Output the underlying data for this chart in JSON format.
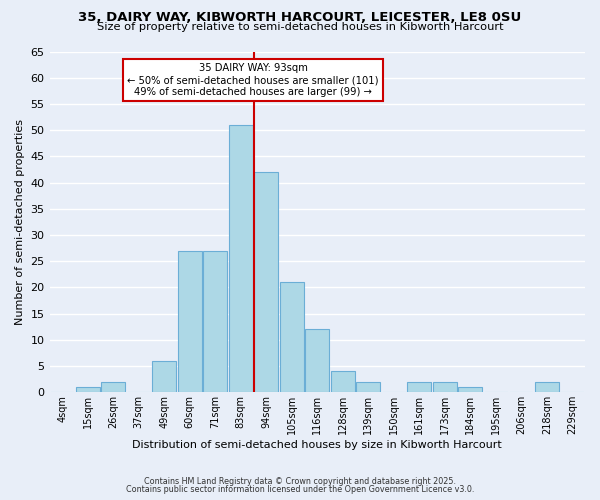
{
  "title_line1": "35, DAIRY WAY, KIBWORTH HARCOURT, LEICESTER, LE8 0SU",
  "title_line2": "Size of property relative to semi-detached houses in Kibworth Harcourt",
  "xlabel": "Distribution of semi-detached houses by size in Kibworth Harcourt",
  "ylabel": "Number of semi-detached properties",
  "bin_labels": [
    "4sqm",
    "15sqm",
    "26sqm",
    "37sqm",
    "49sqm",
    "60sqm",
    "71sqm",
    "83sqm",
    "94sqm",
    "105sqm",
    "116sqm",
    "128sqm",
    "139sqm",
    "150sqm",
    "161sqm",
    "173sqm",
    "184sqm",
    "195sqm",
    "206sqm",
    "218sqm",
    "229sqm"
  ],
  "counts": [
    0,
    1,
    2,
    0,
    6,
    27,
    27,
    51,
    42,
    21,
    12,
    4,
    2,
    0,
    2,
    2,
    1,
    0,
    0,
    2,
    0
  ],
  "bar_color": "#add8e6",
  "bar_edge_color": "#6baed6",
  "vline_bin_index": 8,
  "vline_color": "#cc0000",
  "annotation_title": "35 DAIRY WAY: 93sqm",
  "annotation_line1": "← 50% of semi-detached houses are smaller (101)",
  "annotation_line2": "49% of semi-detached houses are larger (99) →",
  "annotation_box_color": "#ffffff",
  "annotation_box_edge": "#cc0000",
  "ylim": [
    0,
    65
  ],
  "yticks": [
    0,
    5,
    10,
    15,
    20,
    25,
    30,
    35,
    40,
    45,
    50,
    55,
    60,
    65
  ],
  "footnote1": "Contains HM Land Registry data © Crown copyright and database right 2025.",
  "footnote2": "Contains public sector information licensed under the Open Government Licence v3.0.",
  "bg_color": "#e8eef8",
  "grid_color": "#ffffff"
}
